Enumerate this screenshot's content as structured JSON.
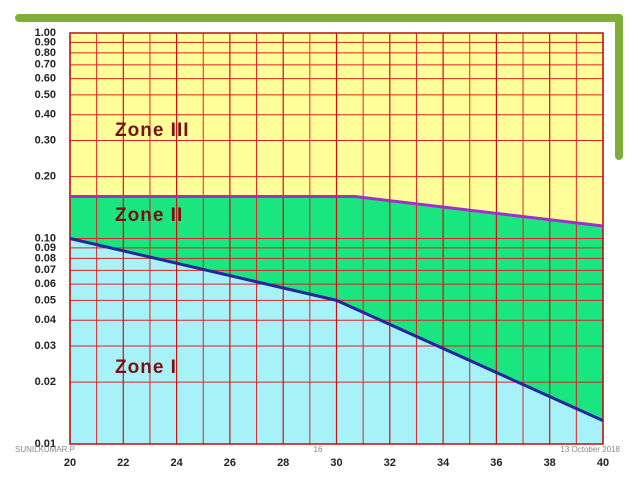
{
  "chart_data": {
    "type": "zone-area",
    "xlim": [
      20,
      40
    ],
    "xticks": [
      20,
      22,
      24,
      26,
      28,
      30,
      32,
      34,
      36,
      38,
      40
    ],
    "ylim": [
      0.01,
      1
    ],
    "log_y": true,
    "grid": true,
    "yticks": [
      0.01,
      0.02,
      0.03,
      0.04,
      0.05,
      0.06,
      0.07,
      0.08,
      0.09,
      {
        "value": 0.1,
        "label": "0.10"
      },
      {
        "value": 0.2,
        "label": "0.20"
      },
      {
        "value": 0.3,
        "label": "0.30"
      },
      {
        "value": 0.4,
        "label": "0.40"
      },
      {
        "value": 0.5,
        "label": "0.50"
      },
      {
        "value": 0.6,
        "label": "0.60"
      },
      {
        "value": 0.7,
        "label": "0.70"
      },
      {
        "value": 0.8,
        "label": "0.80"
      },
      {
        "value": 0.9,
        "label": "0.90"
      },
      {
        "value": 1,
        "label": "1.00"
      }
    ],
    "lines": [
      {
        "x": [
          20,
          30,
          40
        ],
        "values": [
          0.1,
          0.05,
          0.013
        ],
        "color": "#26269e"
      },
      {
        "x": [
          20,
          30.7,
          40
        ],
        "values": [
          0.16,
          0.16,
          0.115
        ],
        "color": "#a030c8"
      }
    ],
    "zone_colors": [
      "#a6f2f8",
      "#19e67e",
      "#ffff9a"
    ],
    "annotations": [
      "Zone I",
      "Zone II",
      "Zone III"
    ]
  },
  "footer": {
    "author": "SUNILKUMAR.P",
    "page": "16",
    "date": "13 October 2018"
  }
}
